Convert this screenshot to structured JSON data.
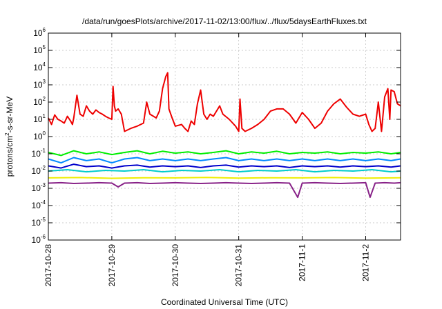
{
  "chart_data": {
    "type": "line",
    "title": "/data/run/goesPlots/archive/2017-11-02/13:00/flux/../flux/5daysEarthFluxes.txt",
    "xlabel": "Coordinated Universal Time (UTC)",
    "ylabel_parts": [
      "protons/cm",
      "2",
      "-s-sr-MeV"
    ],
    "yscale": "log",
    "ylim": [
      1e-06,
      1000000.0
    ],
    "y_ticks": [
      {
        "base": "10",
        "exp": "-6",
        "value": -6
      },
      {
        "base": "10",
        "exp": "-5",
        "value": -5
      },
      {
        "base": "10",
        "exp": "-4",
        "value": -4
      },
      {
        "base": "10",
        "exp": "-3",
        "value": -3
      },
      {
        "base": "10",
        "exp": "-2",
        "value": -2
      },
      {
        "base": "10",
        "exp": "-1",
        "value": -1
      },
      {
        "base": "10",
        "exp": "0",
        "value": 0
      },
      {
        "base": "10",
        "exp": "1",
        "value": 1
      },
      {
        "base": "10",
        "exp": "2",
        "value": 2
      },
      {
        "base": "10",
        "exp": "3",
        "value": 3
      },
      {
        "base": "10",
        "exp": "4",
        "value": 4
      },
      {
        "base": "10",
        "exp": "5",
        "value": 5
      },
      {
        "base": "10",
        "exp": "6",
        "value": 6
      }
    ],
    "xlim_days": [
      0,
      5.55
    ],
    "x_ticks": [
      {
        "label": "2017-10-28",
        "day": 0
      },
      {
        "label": "2017-10-29",
        "day": 1
      },
      {
        "label": "2017-10-30",
        "day": 2
      },
      {
        "label": "2017-10-31",
        "day": 3
      },
      {
        "label": "2017-11-1",
        "day": 4
      },
      {
        "label": "2017-11-2",
        "day": 5
      }
    ],
    "grid": true,
    "series": [
      {
        "color": "#ee0000",
        "points": [
          [
            0,
            12
          ],
          [
            0.05,
            5
          ],
          [
            0.1,
            18
          ],
          [
            0.15,
            10
          ],
          [
            0.2,
            8
          ],
          [
            0.25,
            6
          ],
          [
            0.3,
            15
          ],
          [
            0.35,
            8
          ],
          [
            0.38,
            5
          ],
          [
            0.4,
            12
          ],
          [
            0.45,
            250
          ],
          [
            0.5,
            20
          ],
          [
            0.55,
            15
          ],
          [
            0.6,
            60
          ],
          [
            0.65,
            30
          ],
          [
            0.7,
            20
          ],
          [
            0.75,
            35
          ],
          [
            0.8,
            25
          ],
          [
            0.85,
            20
          ],
          [
            0.9,
            15
          ],
          [
            0.95,
            12
          ],
          [
            1.0,
            10
          ],
          [
            1.02,
            800
          ],
          [
            1.04,
            60
          ],
          [
            1.06,
            30
          ],
          [
            1.1,
            40
          ],
          [
            1.15,
            20
          ],
          [
            1.2,
            2
          ],
          [
            1.3,
            3
          ],
          [
            1.4,
            4
          ],
          [
            1.5,
            6
          ],
          [
            1.55,
            100
          ],
          [
            1.6,
            20
          ],
          [
            1.7,
            12
          ],
          [
            1.75,
            30
          ],
          [
            1.8,
            600
          ],
          [
            1.85,
            3000
          ],
          [
            1.88,
            5000
          ],
          [
            1.9,
            40
          ],
          [
            1.95,
            12
          ],
          [
            2.0,
            4
          ],
          [
            2.1,
            5
          ],
          [
            2.15,
            3
          ],
          [
            2.2,
            2
          ],
          [
            2.25,
            8
          ],
          [
            2.3,
            5
          ],
          [
            2.35,
            80
          ],
          [
            2.4,
            500
          ],
          [
            2.45,
            20
          ],
          [
            2.5,
            10
          ],
          [
            2.55,
            20
          ],
          [
            2.6,
            15
          ],
          [
            2.7,
            60
          ],
          [
            2.75,
            20
          ],
          [
            2.85,
            10
          ],
          [
            2.95,
            4
          ],
          [
            3.0,
            2
          ],
          [
            3.02,
            150
          ],
          [
            3.05,
            3
          ],
          [
            3.1,
            2
          ],
          [
            3.2,
            3
          ],
          [
            3.3,
            5
          ],
          [
            3.4,
            10
          ],
          [
            3.5,
            30
          ],
          [
            3.6,
            40
          ],
          [
            3.7,
            40
          ],
          [
            3.8,
            20
          ],
          [
            3.9,
            6
          ],
          [
            4.0,
            25
          ],
          [
            4.1,
            10
          ],
          [
            4.2,
            3
          ],
          [
            4.3,
            6
          ],
          [
            4.4,
            30
          ],
          [
            4.5,
            80
          ],
          [
            4.6,
            150
          ],
          [
            4.7,
            50
          ],
          [
            4.8,
            20
          ],
          [
            4.9,
            15
          ],
          [
            5.0,
            20
          ],
          [
            5.05,
            5
          ],
          [
            5.1,
            2
          ],
          [
            5.15,
            3
          ],
          [
            5.2,
            100
          ],
          [
            5.25,
            2
          ],
          [
            5.3,
            200
          ],
          [
            5.35,
            600
          ],
          [
            5.38,
            10
          ],
          [
            5.4,
            500
          ],
          [
            5.45,
            400
          ],
          [
            5.5,
            80
          ],
          [
            5.55,
            60
          ]
        ]
      },
      {
        "color": "#00ee00",
        "points": [
          [
            0,
            0.12
          ],
          [
            0.2,
            0.08
          ],
          [
            0.4,
            0.15
          ],
          [
            0.6,
            0.1
          ],
          [
            0.8,
            0.13
          ],
          [
            1.0,
            0.09
          ],
          [
            1.2,
            0.12
          ],
          [
            1.4,
            0.15
          ],
          [
            1.6,
            0.1
          ],
          [
            1.8,
            0.14
          ],
          [
            2.0,
            0.11
          ],
          [
            2.2,
            0.13
          ],
          [
            2.4,
            0.1
          ],
          [
            2.6,
            0.12
          ],
          [
            2.8,
            0.15
          ],
          [
            3.0,
            0.1
          ],
          [
            3.2,
            0.13
          ],
          [
            3.4,
            0.11
          ],
          [
            3.6,
            0.14
          ],
          [
            3.8,
            0.1
          ],
          [
            4.0,
            0.12
          ],
          [
            4.2,
            0.11
          ],
          [
            4.4,
            0.13
          ],
          [
            4.6,
            0.1
          ],
          [
            4.8,
            0.12
          ],
          [
            5.0,
            0.11
          ],
          [
            5.2,
            0.13
          ],
          [
            5.4,
            0.1
          ],
          [
            5.55,
            0.12
          ]
        ]
      },
      {
        "color": "#0088ff",
        "points": [
          [
            0,
            0.05
          ],
          [
            0.2,
            0.03
          ],
          [
            0.4,
            0.06
          ],
          [
            0.6,
            0.04
          ],
          [
            0.8,
            0.05
          ],
          [
            1.0,
            0.03
          ],
          [
            1.2,
            0.05
          ],
          [
            1.4,
            0.06
          ],
          [
            1.6,
            0.04
          ],
          [
            1.8,
            0.05
          ],
          [
            2.0,
            0.04
          ],
          [
            2.2,
            0.05
          ],
          [
            2.4,
            0.04
          ],
          [
            2.6,
            0.05
          ],
          [
            2.8,
            0.06
          ],
          [
            3.0,
            0.04
          ],
          [
            3.2,
            0.05
          ],
          [
            3.4,
            0.04
          ],
          [
            3.6,
            0.05
          ],
          [
            3.8,
            0.04
          ],
          [
            4.0,
            0.05
          ],
          [
            4.2,
            0.04
          ],
          [
            4.4,
            0.05
          ],
          [
            4.6,
            0.04
          ],
          [
            4.8,
            0.05
          ],
          [
            5.0,
            0.04
          ],
          [
            5.2,
            0.05
          ],
          [
            5.4,
            0.04
          ],
          [
            5.55,
            0.05
          ]
        ]
      },
      {
        "color": "#0000cc",
        "points": [
          [
            0,
            0.02
          ],
          [
            0.2,
            0.015
          ],
          [
            0.4,
            0.025
          ],
          [
            0.6,
            0.018
          ],
          [
            0.8,
            0.02
          ],
          [
            1.0,
            0.015
          ],
          [
            1.2,
            0.02
          ],
          [
            1.4,
            0.022
          ],
          [
            1.6,
            0.017
          ],
          [
            1.8,
            0.02
          ],
          [
            2.0,
            0.018
          ],
          [
            2.2,
            0.02
          ],
          [
            2.4,
            0.016
          ],
          [
            2.6,
            0.02
          ],
          [
            2.8,
            0.022
          ],
          [
            3.0,
            0.017
          ],
          [
            3.2,
            0.02
          ],
          [
            3.4,
            0.018
          ],
          [
            3.6,
            0.02
          ],
          [
            3.8,
            0.016
          ],
          [
            4.0,
            0.02
          ],
          [
            4.2,
            0.018
          ],
          [
            4.4,
            0.02
          ],
          [
            4.6,
            0.017
          ],
          [
            4.8,
            0.02
          ],
          [
            5.0,
            0.018
          ],
          [
            5.2,
            0.02
          ],
          [
            5.4,
            0.017
          ],
          [
            5.55,
            0.02
          ]
        ]
      },
      {
        "color": "#00cccc",
        "points": [
          [
            0,
            0.01
          ],
          [
            0.3,
            0.012
          ],
          [
            0.6,
            0.009
          ],
          [
            0.9,
            0.011
          ],
          [
            1.2,
            0.01
          ],
          [
            1.5,
            0.012
          ],
          [
            1.8,
            0.009
          ],
          [
            2.1,
            0.011
          ],
          [
            2.4,
            0.01
          ],
          [
            2.7,
            0.012
          ],
          [
            3.0,
            0.009
          ],
          [
            3.3,
            0.011
          ],
          [
            3.6,
            0.01
          ],
          [
            3.9,
            0.012
          ],
          [
            4.2,
            0.009
          ],
          [
            4.5,
            0.011
          ],
          [
            4.8,
            0.01
          ],
          [
            5.1,
            0.012
          ],
          [
            5.4,
            0.009
          ],
          [
            5.55,
            0.01
          ]
        ]
      },
      {
        "color": "#eeee00",
        "points": [
          [
            0,
            0.004
          ],
          [
            0.5,
            0.0042
          ],
          [
            1.0,
            0.0038
          ],
          [
            1.5,
            0.0041
          ],
          [
            2.0,
            0.004
          ],
          [
            2.5,
            0.0043
          ],
          [
            3.0,
            0.0039
          ],
          [
            3.5,
            0.0041
          ],
          [
            4.0,
            0.004
          ],
          [
            4.5,
            0.0042
          ],
          [
            5.0,
            0.0039
          ],
          [
            5.55,
            0.0041
          ]
        ]
      },
      {
        "color": "#882288",
        "points": [
          [
            0,
            0.002
          ],
          [
            0.2,
            0.0021
          ],
          [
            0.4,
            0.0019
          ],
          [
            0.6,
            0.002
          ],
          [
            0.8,
            0.0021
          ],
          [
            1.0,
            0.002
          ],
          [
            1.1,
            0.0012
          ],
          [
            1.2,
            0.002
          ],
          [
            1.4,
            0.0021
          ],
          [
            1.6,
            0.0019
          ],
          [
            1.8,
            0.002
          ],
          [
            2.0,
            0.0021
          ],
          [
            2.2,
            0.002
          ],
          [
            2.4,
            0.0019
          ],
          [
            2.6,
            0.002
          ],
          [
            2.8,
            0.0021
          ],
          [
            3.0,
            0.002
          ],
          [
            3.2,
            0.0019
          ],
          [
            3.4,
            0.002
          ],
          [
            3.6,
            0.0021
          ],
          [
            3.8,
            0.002
          ],
          [
            3.93,
            0.0003
          ],
          [
            4.0,
            0.002
          ],
          [
            4.2,
            0.0021
          ],
          [
            4.4,
            0.002
          ],
          [
            4.6,
            0.0019
          ],
          [
            4.8,
            0.002
          ],
          [
            5.0,
            0.0021
          ],
          [
            5.07,
            0.0003
          ],
          [
            5.15,
            0.002
          ],
          [
            5.3,
            0.0021
          ],
          [
            5.45,
            0.002
          ],
          [
            5.55,
            0.0021
          ]
        ]
      }
    ]
  }
}
